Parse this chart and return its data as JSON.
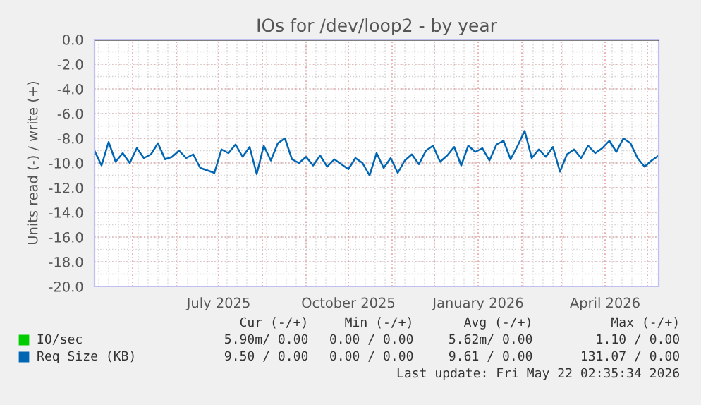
{
  "chart_data": {
    "type": "line",
    "title": "IOs for /dev/loop2 - by year",
    "ylabel": "Units read (-) / write (+)",
    "x": [
      "2025-04-04",
      "2025-04-09",
      "2025-04-14",
      "2025-04-19",
      "2025-04-24",
      "2025-04-29",
      "2025-05-04",
      "2025-05-09",
      "2025-05-14",
      "2025-05-19",
      "2025-05-24",
      "2025-05-29",
      "2025-06-03",
      "2025-06-08",
      "2025-06-13",
      "2025-06-18",
      "2025-06-23",
      "2025-06-28",
      "2025-07-03",
      "2025-07-08",
      "2025-07-13",
      "2025-07-18",
      "2025-07-23",
      "2025-07-28",
      "2025-08-02",
      "2025-08-07",
      "2025-08-12",
      "2025-08-17",
      "2025-08-22",
      "2025-08-27",
      "2025-09-01",
      "2025-09-06",
      "2025-09-11",
      "2025-09-16",
      "2025-09-21",
      "2025-09-26",
      "2025-10-01",
      "2025-10-06",
      "2025-10-11",
      "2025-10-16",
      "2025-10-21",
      "2025-10-26",
      "2025-10-31",
      "2025-11-05",
      "2025-11-10",
      "2025-11-15",
      "2025-11-20",
      "2025-11-25",
      "2025-11-30",
      "2025-12-05",
      "2025-12-10",
      "2025-12-15",
      "2025-12-20",
      "2025-12-25",
      "2025-12-30",
      "2026-01-04",
      "2026-01-09",
      "2026-01-14",
      "2026-01-19",
      "2026-01-24",
      "2026-01-29",
      "2026-02-03",
      "2026-02-08",
      "2026-02-13",
      "2026-02-18",
      "2026-02-23",
      "2026-02-28",
      "2026-03-05",
      "2026-03-10",
      "2026-03-15",
      "2026-03-20",
      "2026-03-25",
      "2026-03-30",
      "2026-04-04",
      "2026-04-09",
      "2026-04-14",
      "2026-04-19",
      "2026-04-24",
      "2026-04-29",
      "2026-05-04",
      "2026-05-09"
    ],
    "series": [
      {
        "name": "IO/sec",
        "color": "#00cc00",
        "values": [
          null,
          null,
          null,
          null,
          null,
          null,
          null,
          null,
          null,
          null,
          null,
          null,
          null,
          null,
          null,
          null,
          null,
          null,
          null,
          null,
          null,
          null,
          null,
          null,
          null,
          null,
          null,
          null,
          null,
          null,
          null,
          null,
          null,
          null,
          null,
          null,
          null,
          null,
          null,
          null,
          null,
          null,
          null,
          null,
          null,
          null,
          null,
          null,
          null,
          null,
          null,
          null,
          null,
          null,
          null,
          null,
          null,
          null,
          null,
          null,
          null,
          null,
          null,
          null,
          null,
          null,
          null,
          null,
          null,
          null,
          null,
          null,
          null,
          null,
          null,
          null,
          null,
          null,
          null,
          null,
          null
        ]
      },
      {
        "name": "Req Size (KB)",
        "color": "#0066b3",
        "values": [
          -9.0,
          -10.2,
          -8.3,
          -9.9,
          -9.2,
          -10.0,
          -8.8,
          -9.6,
          -9.3,
          -8.4,
          -9.7,
          -9.5,
          -9.0,
          -9.6,
          -9.3,
          -10.4,
          -10.6,
          -10.8,
          -8.9,
          -9.2,
          -8.5,
          -9.5,
          -8.7,
          -10.9,
          -8.6,
          -9.8,
          -8.4,
          -8.0,
          -9.7,
          -10.0,
          -9.5,
          -10.2,
          -9.4,
          -10.3,
          -9.7,
          -10.1,
          -10.5,
          -9.6,
          -10.0,
          -11.0,
          -9.2,
          -10.4,
          -9.6,
          -10.8,
          -9.8,
          -9.3,
          -10.1,
          -9.0,
          -8.6,
          -9.9,
          -9.4,
          -8.7,
          -10.2,
          -8.6,
          -9.1,
          -8.8,
          -9.8,
          -8.5,
          -8.2,
          -9.7,
          -8.6,
          -7.4,
          -9.6,
          -8.9,
          -9.5,
          -8.7,
          -10.7,
          -9.3,
          -8.9,
          -9.6,
          -8.6,
          -9.2,
          -8.8,
          -8.2,
          -9.1,
          -8.0,
          -8.4,
          -9.6,
          -10.3,
          -9.8,
          -9.4
        ]
      }
    ],
    "xlim": [
      "2025-04-04",
      "2026-05-09"
    ],
    "xticks": [
      {
        "value": "2025-07-01",
        "label": "July 2025"
      },
      {
        "value": "2025-10-01",
        "label": "October 2025"
      },
      {
        "value": "2026-01-01",
        "label": "January 2026"
      },
      {
        "value": "2026-04-01",
        "label": "April 2026"
      }
    ],
    "ylim": [
      -20,
      0
    ],
    "yticks": [
      {
        "value": 0,
        "label": "0.0"
      },
      {
        "value": -2,
        "label": "-2.0"
      },
      {
        "value": -4,
        "label": "-4.0"
      },
      {
        "value": -6,
        "label": "-6.0"
      },
      {
        "value": -8,
        "label": "-8.0"
      },
      {
        "value": -10,
        "label": "-10.0"
      },
      {
        "value": -12,
        "label": "-12.0"
      },
      {
        "value": -14,
        "label": "-14.0"
      },
      {
        "value": -16,
        "label": "-16.0"
      },
      {
        "value": -18,
        "label": "-18.0"
      },
      {
        "value": -20,
        "label": "-20.0"
      }
    ],
    "ref_lines": [
      {
        "axis": "y",
        "value": 0,
        "color": "#000000"
      }
    ],
    "grid": true,
    "legend": "bottom",
    "annotations": [
      "Cur (-/+)",
      "Min (-/+)",
      "Avg (-/+)",
      "Max (-/+)",
      "5.90m/ 0.00",
      "0.00 / 0.00",
      "5.62m/ 0.00",
      "1.10 / 0.00",
      "9.50 / 0.00",
      "0.00 / 0.00",
      "9.61 / 0.00",
      "131.07 / 0.00",
      "Last update: Fri May 22 02:35:34 2026"
    ]
  }
}
